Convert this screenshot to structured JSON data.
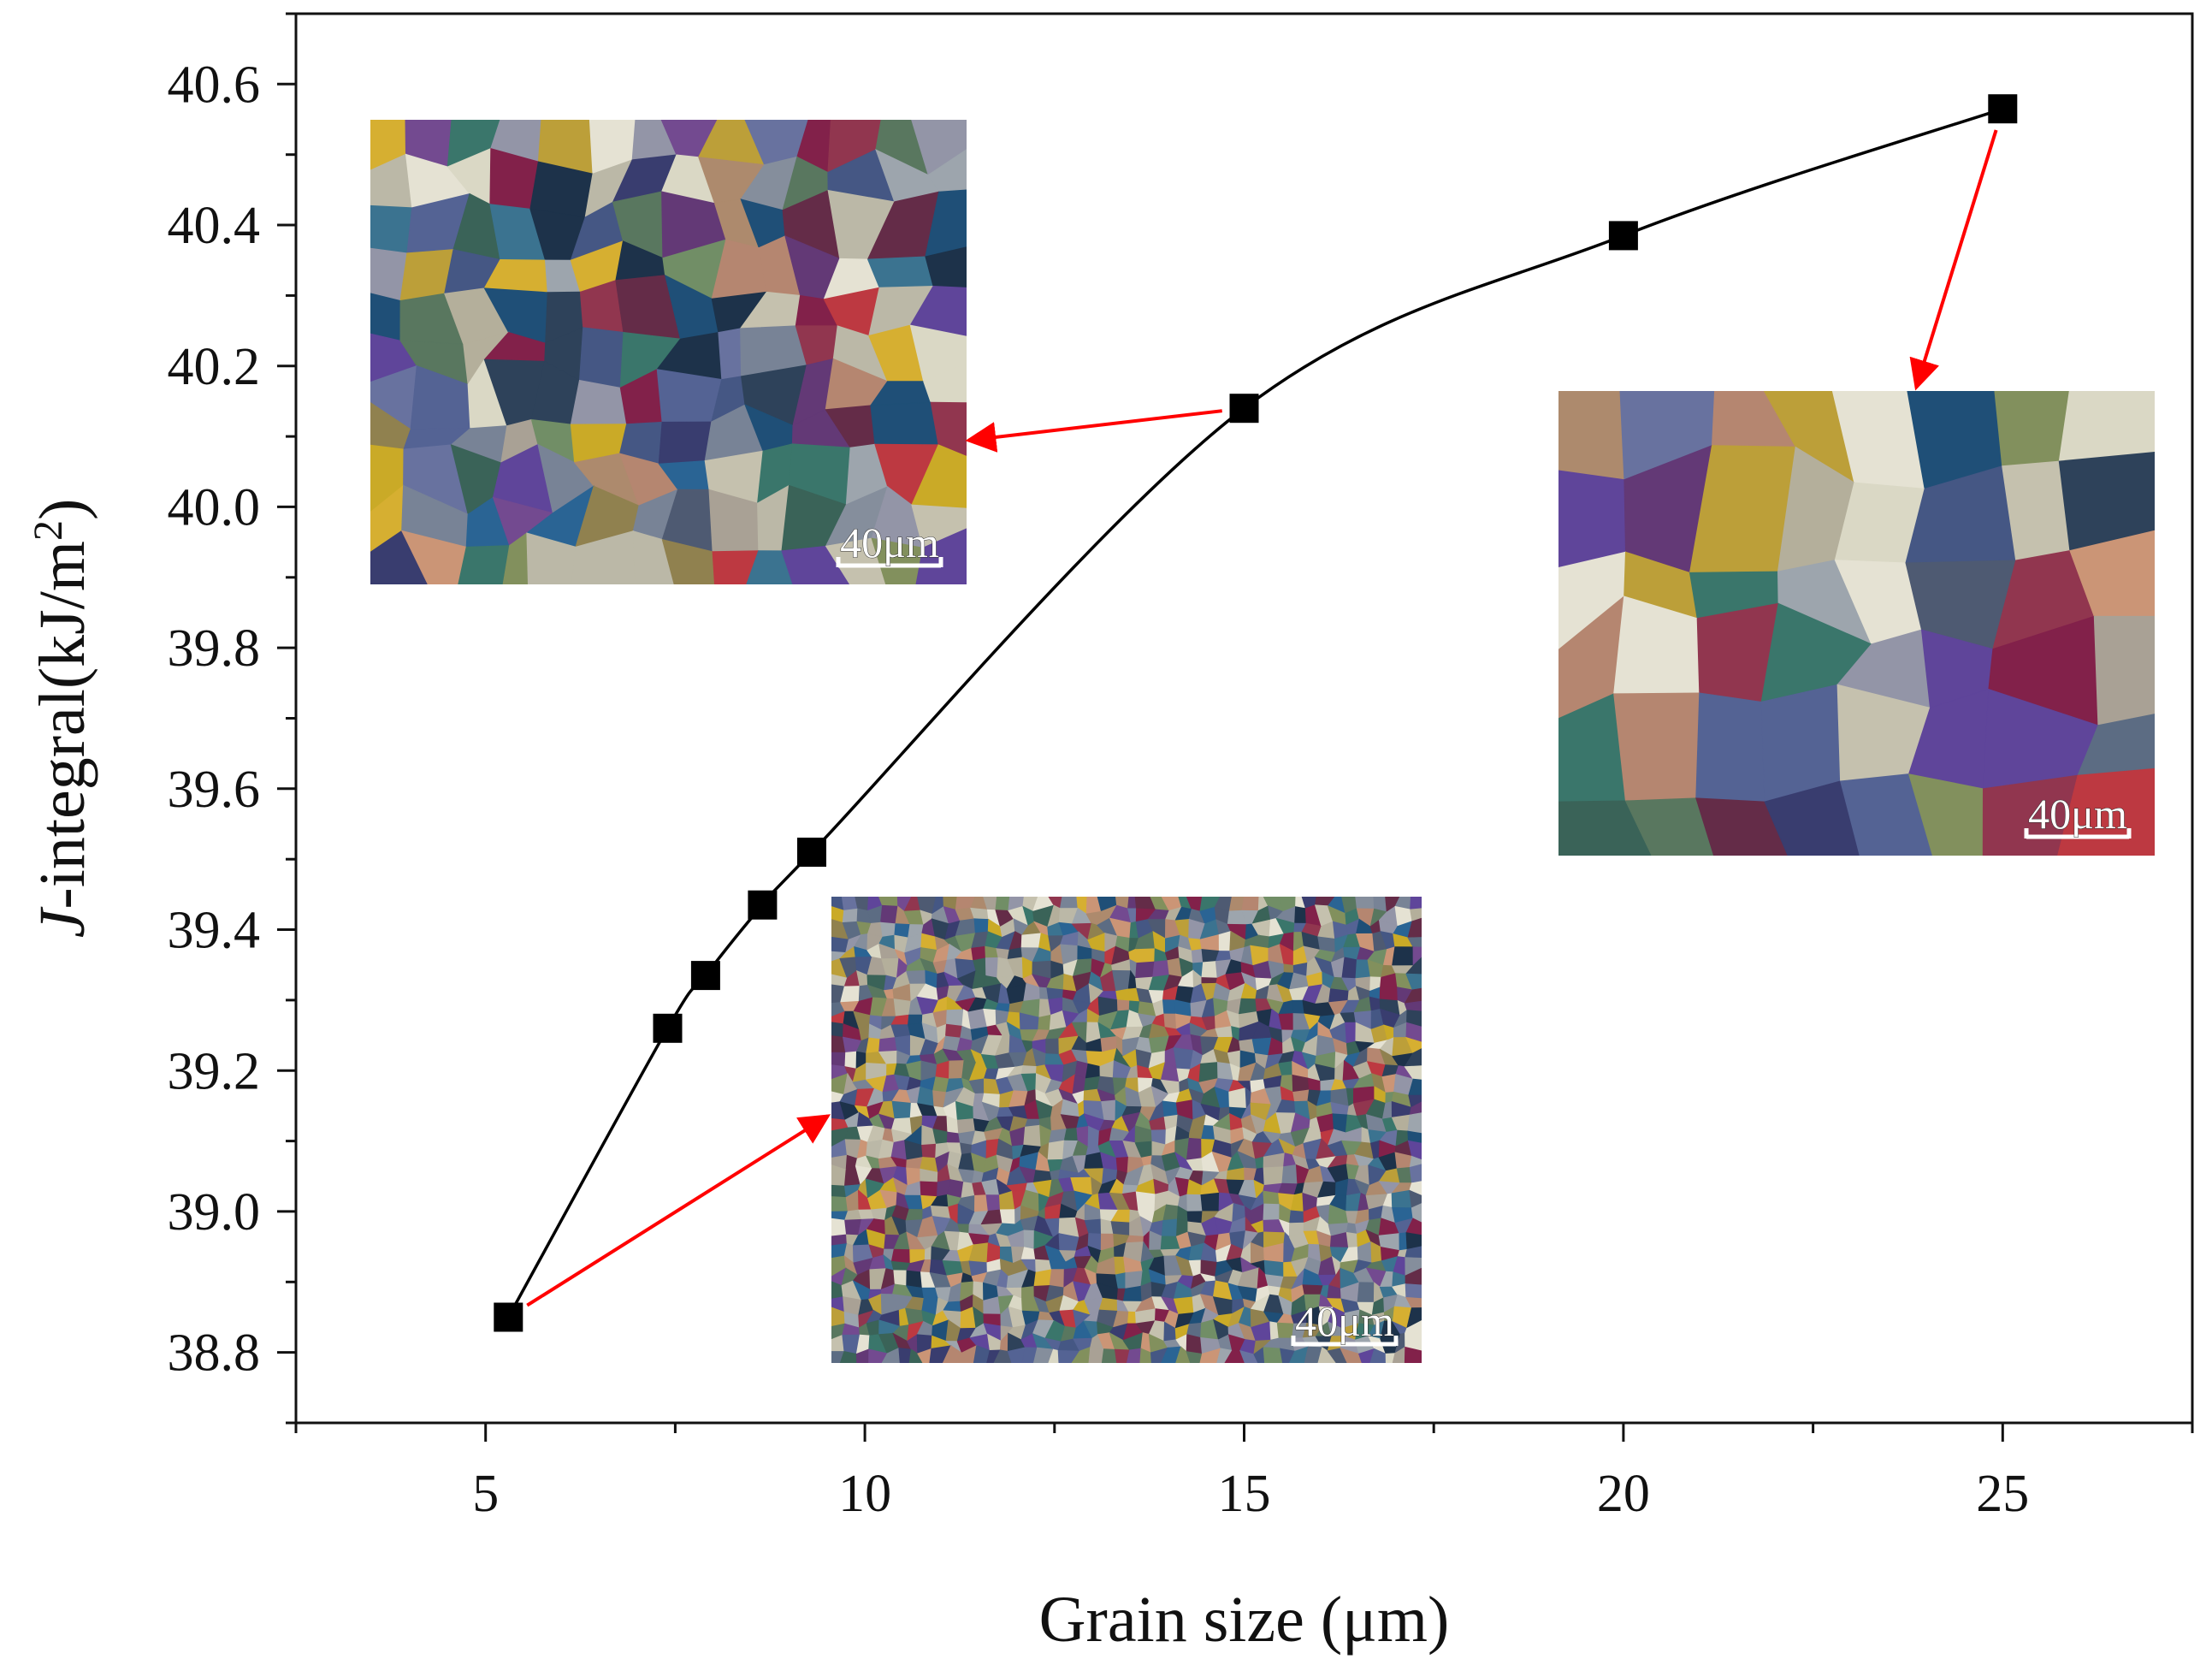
{
  "chart_data": {
    "type": "line",
    "xlabel": "Grain size (μm)",
    "ylabel": {
      "italic_prefix": "J",
      "rest": "-integral(kJ/m",
      "superscript": "2",
      "closing": ")"
    },
    "xlim": [
      2.5,
      27.5
    ],
    "ylim": [
      38.7,
      40.7
    ],
    "xticks": [
      5,
      10,
      15,
      20,
      25
    ],
    "xtick_labels": [
      "5",
      "10",
      "15",
      "20",
      "25"
    ],
    "yticks": [
      38.8,
      39.0,
      39.2,
      39.4,
      39.6,
      39.8,
      40.0,
      40.2,
      40.4,
      40.6
    ],
    "ytick_labels": [
      "38.8",
      "39.0",
      "39.2",
      "39.4",
      "39.6",
      "39.8",
      "40.0",
      "40.2",
      "40.4",
      "40.6"
    ],
    "grid": false,
    "series": [
      {
        "marker": "square",
        "color": "#000000",
        "x": [
          5.3,
          7.4,
          7.9,
          8.65,
          9.3,
          15.0,
          20.0,
          25.0
        ],
        "y": [
          38.85,
          39.26,
          39.335,
          39.435,
          39.51,
          40.14,
          40.385,
          40.565
        ]
      }
    ],
    "insets": [
      {
        "name": "fine-grain-micrograph",
        "scale_label": "40μm",
        "points_to": {
          "x": 5.3,
          "y": 38.85
        },
        "grain_scale": "fine"
      },
      {
        "name": "medium-grain-micrograph",
        "scale_label": "40μm",
        "points_to": {
          "x": 15.0,
          "y": 40.14
        },
        "grain_scale": "medium"
      },
      {
        "name": "coarse-grain-micrograph",
        "scale_label": "40μm",
        "points_to": {
          "x": 25.0,
          "y": 40.565
        },
        "grain_scale": "coarse"
      }
    ],
    "arrow_color": "#ff0000",
    "grain_palette": [
      "#2d3167",
      "#3a4d7d",
      "#4a5a8e",
      "#5f6a9a",
      "#707c90",
      "#7e8796",
      "#8d8fa2",
      "#97a0a8",
      "#a49c8f",
      "#b0aa95",
      "#b7b4a2",
      "#c2bea9",
      "#a88364",
      "#b17f68",
      "#c88f6e",
      "#7b8a53",
      "#69875d",
      "#4f6f56",
      "#2e5a4e",
      "#2e6e62",
      "#11456f",
      "#1d5b8e",
      "#2f6b8a",
      "#213750",
      "#0f263f",
      "#5b1f3d",
      "#7b143f",
      "#8b2a45",
      "#b92d36",
      "#5a2d6e",
      "#6b3f8a",
      "#553a94",
      "#c7a51a",
      "#d4ab25",
      "#b89a2d",
      "#8a7a45",
      "#d8d6c2",
      "#e4e1d1",
      "#52637c",
      "#43506a"
    ]
  }
}
